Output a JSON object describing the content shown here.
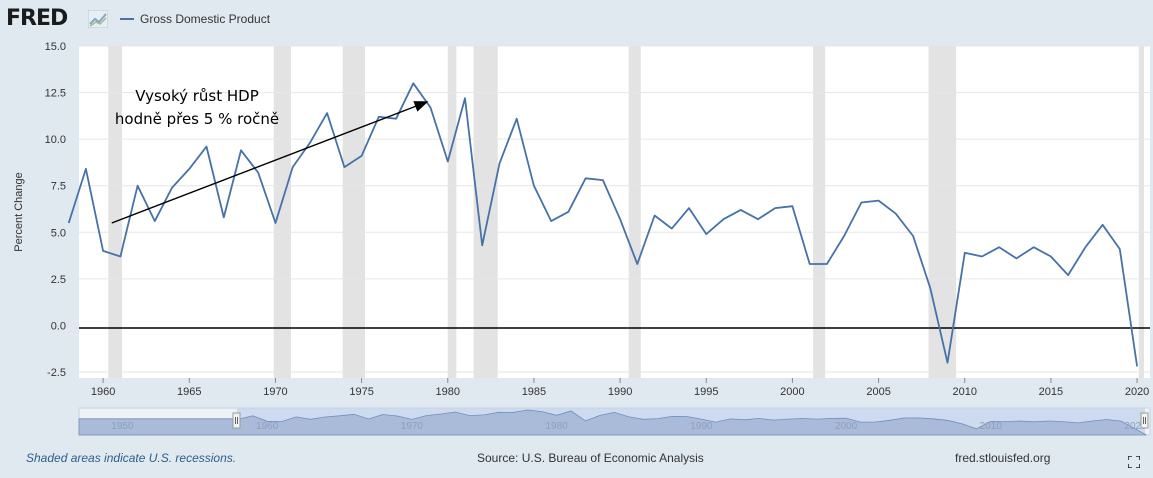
{
  "header": {
    "logo_text": "FRED",
    "legend_label": "Gross Domestic Product"
  },
  "footer": {
    "recession_note": "Shaded areas indicate U.S. recessions.",
    "source": "Source: U.S. Bureau of Economic Analysis",
    "site": "fred.stlouisfed.org"
  },
  "colors": {
    "series": "#4572a7",
    "recession": "#e3e3e3",
    "background": "#e1e9f0",
    "navigator_fill": "#a9bbd9"
  },
  "chart_data": {
    "type": "line",
    "ylabel": "Percent Change",
    "ylim": [
      -2.5,
      15.0
    ],
    "yticks": [
      "15.0",
      "12.5",
      "10.0",
      "7.5",
      "5.0",
      "2.5",
      "0.0",
      "-2.5"
    ],
    "xticks": [
      "1960",
      "1965",
      "1970",
      "1975",
      "1980",
      "1985",
      "1990",
      "1995",
      "2000",
      "2005",
      "2010",
      "2015",
      "2020"
    ],
    "navigator_labels": [
      "1950",
      "1960",
      "1970",
      "1980",
      "1990",
      "2000",
      "2010",
      "2020"
    ],
    "series": [
      {
        "name": "Gross Domestic Product",
        "x": [
          1958,
          1959,
          1960,
          1961,
          1962,
          1963,
          1964,
          1965,
          1966,
          1967,
          1968,
          1969,
          1970,
          1971,
          1972,
          1973,
          1974,
          1975,
          1976,
          1977,
          1978,
          1979,
          1980,
          1981,
          1982,
          1983,
          1984,
          1985,
          1986,
          1987,
          1988,
          1989,
          1990,
          1991,
          1992,
          1993,
          1994,
          1995,
          1996,
          1997,
          1998,
          1999,
          2000,
          2001,
          2002,
          2003,
          2004,
          2005,
          2006,
          2007,
          2008,
          2009,
          2010,
          2011,
          2012,
          2013,
          2014,
          2015,
          2016,
          2017,
          2018,
          2019,
          2020
        ],
        "y": [
          5.5,
          8.4,
          4.0,
          3.7,
          7.5,
          5.6,
          7.4,
          8.4,
          9.6,
          5.8,
          9.4,
          8.2,
          5.5,
          8.5,
          9.8,
          11.4,
          8.5,
          9.1,
          11.2,
          11.1,
          13.0,
          11.7,
          8.8,
          12.2,
          4.3,
          8.7,
          11.1,
          7.5,
          5.6,
          6.1,
          7.9,
          7.8,
          5.7,
          3.3,
          5.9,
          5.2,
          6.3,
          4.9,
          5.7,
          6.2,
          5.7,
          6.3,
          6.4,
          3.3,
          3.3,
          4.8,
          6.6,
          6.7,
          6.0,
          4.8,
          2.0,
          -2.0,
          3.9,
          3.7,
          4.2,
          3.6,
          4.2,
          3.7,
          2.7,
          4.2,
          5.4,
          4.1,
          -2.2
        ]
      }
    ],
    "recessions": [
      [
        1960.3,
        1961.1
      ],
      [
        1969.9,
        1970.9
      ],
      [
        1973.9,
        1975.2
      ],
      [
        1980.0,
        1980.5
      ],
      [
        1981.5,
        1982.9
      ],
      [
        1990.5,
        1991.2
      ],
      [
        2001.2,
        2001.9
      ],
      [
        2007.9,
        2009.5
      ],
      [
        2020.1,
        2020.4
      ]
    ],
    "annotation": {
      "lines": [
        "Vysoký růst HDP",
        "hodně přes 5 % ročně"
      ],
      "arrow_from": [
        1960.5,
        5.5
      ],
      "arrow_to": [
        1978.8,
        12.0
      ]
    },
    "grid": true,
    "legend": "top-left"
  }
}
